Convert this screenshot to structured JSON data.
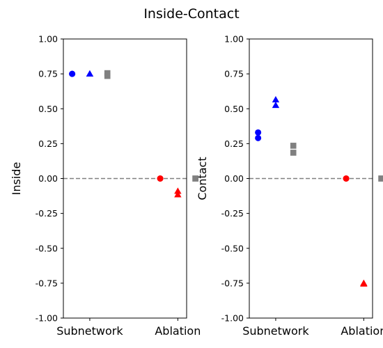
{
  "figure": {
    "title": "Inside-Contact"
  },
  "chart_data": [
    {
      "type": "scatter",
      "ylabel": "Inside",
      "categories": [
        "Subnetwork",
        "Ablation"
      ],
      "ylim": [
        -1.0,
        1.0
      ],
      "yticks": [
        "-1.00",
        "-0.75",
        "-0.50",
        "-0.25",
        "0.00",
        "0.25",
        "0.50",
        "0.75",
        "1.00"
      ],
      "reference_line": {
        "y": 0,
        "style": "dashed",
        "color": "#808080"
      },
      "points": [
        {
          "group": "Subnetwork",
          "slot": 0,
          "y": 0.75,
          "marker": "circle",
          "color": "#0000ff"
        },
        {
          "group": "Subnetwork",
          "slot": 0,
          "y": 0.75,
          "marker": "circle",
          "color": "#0000ff"
        },
        {
          "group": "Subnetwork",
          "slot": 1,
          "y": 0.75,
          "marker": "triangle",
          "color": "#0000ff"
        },
        {
          "group": "Subnetwork",
          "slot": 1,
          "y": 0.75,
          "marker": "triangle",
          "color": "#0000ff"
        },
        {
          "group": "Subnetwork",
          "slot": 2,
          "y": 0.755,
          "marker": "square",
          "color": "#808080"
        },
        {
          "group": "Subnetwork",
          "slot": 2,
          "y": 0.735,
          "marker": "square",
          "color": "#808080"
        },
        {
          "group": "Ablation",
          "slot": 0,
          "y": 0.0,
          "marker": "circle",
          "color": "#ff0000"
        },
        {
          "group": "Ablation",
          "slot": 0,
          "y": 0.0,
          "marker": "circle",
          "color": "#ff0000"
        },
        {
          "group": "Ablation",
          "slot": 1,
          "y": -0.09,
          "marker": "triangle",
          "color": "#ff0000"
        },
        {
          "group": "Ablation",
          "slot": 1,
          "y": -0.115,
          "marker": "triangle",
          "color": "#ff0000"
        },
        {
          "group": "Ablation",
          "slot": 2,
          "y": 0.0,
          "marker": "square",
          "color": "#808080"
        },
        {
          "group": "Ablation",
          "slot": 2,
          "y": 0.0,
          "marker": "square",
          "color": "#808080"
        }
      ]
    },
    {
      "type": "scatter",
      "ylabel": "Contact",
      "categories": [
        "Subnetwork",
        "Ablation"
      ],
      "ylim": [
        -1.0,
        1.0
      ],
      "yticks": [
        "-1.00",
        "-0.75",
        "-0.50",
        "-0.25",
        "0.00",
        "0.25",
        "0.50",
        "0.75",
        "1.00"
      ],
      "reference_line": {
        "y": 0,
        "style": "dashed",
        "color": "#808080"
      },
      "points": [
        {
          "group": "Subnetwork",
          "slot": 0,
          "y": 0.33,
          "marker": "circle",
          "color": "#0000ff"
        },
        {
          "group": "Subnetwork",
          "slot": 0,
          "y": 0.29,
          "marker": "circle",
          "color": "#0000ff"
        },
        {
          "group": "Subnetwork",
          "slot": 1,
          "y": 0.565,
          "marker": "triangle",
          "color": "#0000ff"
        },
        {
          "group": "Subnetwork",
          "slot": 1,
          "y": 0.525,
          "marker": "triangle",
          "color": "#0000ff"
        },
        {
          "group": "Subnetwork",
          "slot": 2,
          "y": 0.235,
          "marker": "square",
          "color": "#808080"
        },
        {
          "group": "Subnetwork",
          "slot": 2,
          "y": 0.185,
          "marker": "square",
          "color": "#808080"
        },
        {
          "group": "Ablation",
          "slot": 0,
          "y": 0.0,
          "marker": "circle",
          "color": "#ff0000"
        },
        {
          "group": "Ablation",
          "slot": 0,
          "y": 0.0,
          "marker": "circle",
          "color": "#ff0000"
        },
        {
          "group": "Ablation",
          "slot": 1,
          "y": -0.75,
          "marker": "triangle",
          "color": "#ff0000"
        },
        {
          "group": "Ablation",
          "slot": 1,
          "y": -0.755,
          "marker": "triangle",
          "color": "#ff0000"
        },
        {
          "group": "Ablation",
          "slot": 2,
          "y": 0.0,
          "marker": "square",
          "color": "#808080"
        },
        {
          "group": "Ablation",
          "slot": 2,
          "y": 0.0,
          "marker": "square",
          "color": "#808080"
        }
      ]
    }
  ]
}
